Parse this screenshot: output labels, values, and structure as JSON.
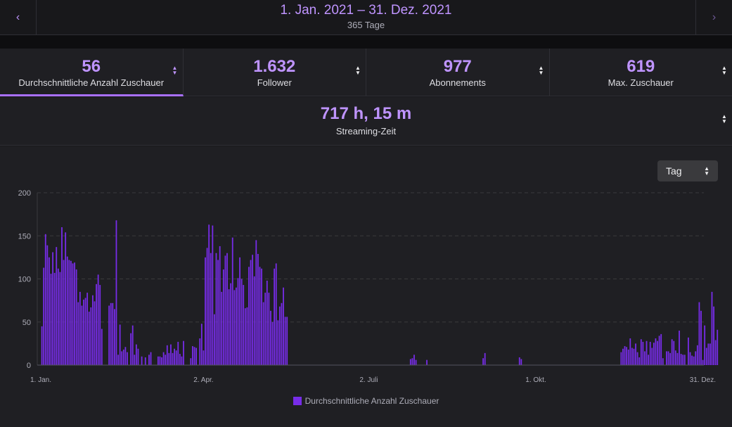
{
  "header": {
    "date_range": "1. Jan. 2021 – 31. Dez. 2021",
    "days": "365 Tage",
    "prev_icon": "chevron-left-icon",
    "next_icon": "chevron-right-icon"
  },
  "stats": [
    {
      "value": "56",
      "label": "Durchschnittliche Anzahl Zuschauer",
      "active": true
    },
    {
      "value": "1.632",
      "label": "Follower",
      "active": false
    },
    {
      "value": "977",
      "label": "Abonnements",
      "active": false
    },
    {
      "value": "619",
      "label": "Max. Zuschauer",
      "active": false
    }
  ],
  "streaming": {
    "value": "717 h, 15 m",
    "label": "Streaming-Zeit"
  },
  "granularity": {
    "selected": "Tag"
  },
  "colors": {
    "accent": "#bf94ff",
    "bar": "#772ce8",
    "background": "#1f1f23"
  },
  "chart_data": {
    "type": "bar",
    "x_axis": {
      "range_days": [
        1,
        365
      ],
      "tick_days": [
        1,
        91,
        182,
        274,
        365
      ],
      "tick_labels": [
        "1. Jan.",
        "2. Apr.",
        "2. Juli",
        "1. Okt.",
        "31. Dez."
      ]
    },
    "ylim": [
      0,
      200
    ],
    "yticks": [
      0,
      50,
      100,
      150,
      200
    ],
    "grid": true,
    "legend": "bottom-center",
    "series": [
      {
        "name": "Durchschnittliche Anzahl Zuschauer",
        "points": [
          [
            2,
            45
          ],
          [
            3,
            113
          ],
          [
            4,
            152
          ],
          [
            5,
            139
          ],
          [
            6,
            125
          ],
          [
            7,
            106
          ],
          [
            8,
            131
          ],
          [
            9,
            107
          ],
          [
            10,
            137
          ],
          [
            11,
            112
          ],
          [
            12,
            108
          ],
          [
            13,
            160
          ],
          [
            14,
            122
          ],
          [
            15,
            154
          ],
          [
            16,
            126
          ],
          [
            17,
            122
          ],
          [
            18,
            121
          ],
          [
            19,
            118
          ],
          [
            20,
            119
          ],
          [
            21,
            111
          ],
          [
            22,
            73
          ],
          [
            23,
            85
          ],
          [
            24,
            69
          ],
          [
            25,
            76
          ],
          [
            26,
            78
          ],
          [
            27,
            84
          ],
          [
            28,
            62
          ],
          [
            29,
            67
          ],
          [
            30,
            81
          ],
          [
            31,
            74
          ],
          [
            32,
            94
          ],
          [
            33,
            105
          ],
          [
            34,
            93
          ],
          [
            35,
            42
          ],
          [
            39,
            69
          ],
          [
            40,
            72
          ],
          [
            41,
            72
          ],
          [
            42,
            65
          ],
          [
            43,
            168
          ],
          [
            44,
            12
          ],
          [
            45,
            47
          ],
          [
            46,
            16
          ],
          [
            47,
            18
          ],
          [
            48,
            21
          ],
          [
            49,
            15
          ],
          [
            51,
            37
          ],
          [
            52,
            46
          ],
          [
            53,
            12
          ],
          [
            54,
            24
          ],
          [
            55,
            19
          ],
          [
            57,
            10
          ],
          [
            59,
            9
          ],
          [
            61,
            12
          ],
          [
            62,
            15
          ],
          [
            66,
            10
          ],
          [
            67,
            10
          ],
          [
            68,
            9
          ],
          [
            69,
            15
          ],
          [
            70,
            12
          ],
          [
            71,
            23
          ],
          [
            72,
            14
          ],
          [
            73,
            24
          ],
          [
            74,
            14
          ],
          [
            75,
            19
          ],
          [
            76,
            17
          ],
          [
            77,
            27
          ],
          [
            78,
            13
          ],
          [
            79,
            10
          ],
          [
            80,
            28
          ],
          [
            84,
            8
          ],
          [
            85,
            22
          ],
          [
            86,
            21
          ],
          [
            87,
            20
          ],
          [
            89,
            31
          ],
          [
            90,
            48
          ],
          [
            91,
            17
          ],
          [
            92,
            125
          ],
          [
            93,
            136
          ],
          [
            94,
            163
          ],
          [
            95,
            130
          ],
          [
            96,
            162
          ],
          [
            97,
            59
          ],
          [
            98,
            130
          ],
          [
            99,
            122
          ],
          [
            100,
            138
          ],
          [
            101,
            85
          ],
          [
            102,
            111
          ],
          [
            103,
            127
          ],
          [
            104,
            130
          ],
          [
            105,
            88
          ],
          [
            106,
            95
          ],
          [
            107,
            148
          ],
          [
            108,
            87
          ],
          [
            109,
            90
          ],
          [
            110,
            101
          ],
          [
            111,
            125
          ],
          [
            112,
            100
          ],
          [
            113,
            93
          ],
          [
            114,
            66
          ],
          [
            115,
            67
          ],
          [
            116,
            114
          ],
          [
            117,
            122
          ],
          [
            118,
            128
          ],
          [
            119,
            103
          ],
          [
            120,
            145
          ],
          [
            121,
            129
          ],
          [
            122,
            114
          ],
          [
            123,
            112
          ],
          [
            124,
            73
          ],
          [
            125,
            84
          ],
          [
            126,
            98
          ],
          [
            127,
            84
          ],
          [
            128,
            63
          ],
          [
            129,
            50
          ],
          [
            130,
            112
          ],
          [
            131,
            118
          ],
          [
            132,
            52
          ],
          [
            133,
            68
          ],
          [
            134,
            72
          ],
          [
            135,
            90
          ],
          [
            136,
            56
          ],
          [
            137,
            56
          ],
          [
            205,
            7
          ],
          [
            206,
            8
          ],
          [
            207,
            12
          ],
          [
            208,
            6
          ],
          [
            214,
            6
          ],
          [
            245,
            8
          ],
          [
            246,
            14
          ],
          [
            265,
            9
          ],
          [
            266,
            7
          ],
          [
            321,
            15
          ],
          [
            322,
            19
          ],
          [
            323,
            22
          ],
          [
            324,
            21
          ],
          [
            325,
            18
          ],
          [
            326,
            31
          ],
          [
            327,
            20
          ],
          [
            328,
            19
          ],
          [
            329,
            25
          ],
          [
            330,
            15
          ],
          [
            331,
            9
          ],
          [
            332,
            30
          ],
          [
            333,
            27
          ],
          [
            334,
            16
          ],
          [
            335,
            28
          ],
          [
            336,
            12
          ],
          [
            337,
            27
          ],
          [
            338,
            20
          ],
          [
            339,
            26
          ],
          [
            340,
            31
          ],
          [
            341,
            28
          ],
          [
            342,
            34
          ],
          [
            343,
            36
          ],
          [
            344,
            8
          ],
          [
            346,
            16
          ],
          [
            347,
            16
          ],
          [
            348,
            14
          ],
          [
            349,
            30
          ],
          [
            350,
            28
          ],
          [
            351,
            17
          ],
          [
            352,
            14
          ],
          [
            353,
            40
          ],
          [
            354,
            13
          ],
          [
            355,
            12
          ],
          [
            356,
            12
          ],
          [
            358,
            32
          ],
          [
            359,
            15
          ],
          [
            360,
            11
          ],
          [
            361,
            10
          ],
          [
            362,
            16
          ],
          [
            363,
            23
          ],
          [
            364,
            73
          ],
          [
            365,
            63
          ],
          [
            366,
            6
          ],
          [
            367,
            46
          ],
          [
            368,
            20
          ],
          [
            369,
            25
          ],
          [
            370,
            25
          ],
          [
            371,
            85
          ],
          [
            372,
            68
          ],
          [
            373,
            29
          ],
          [
            374,
            41
          ]
        ]
      }
    ]
  }
}
